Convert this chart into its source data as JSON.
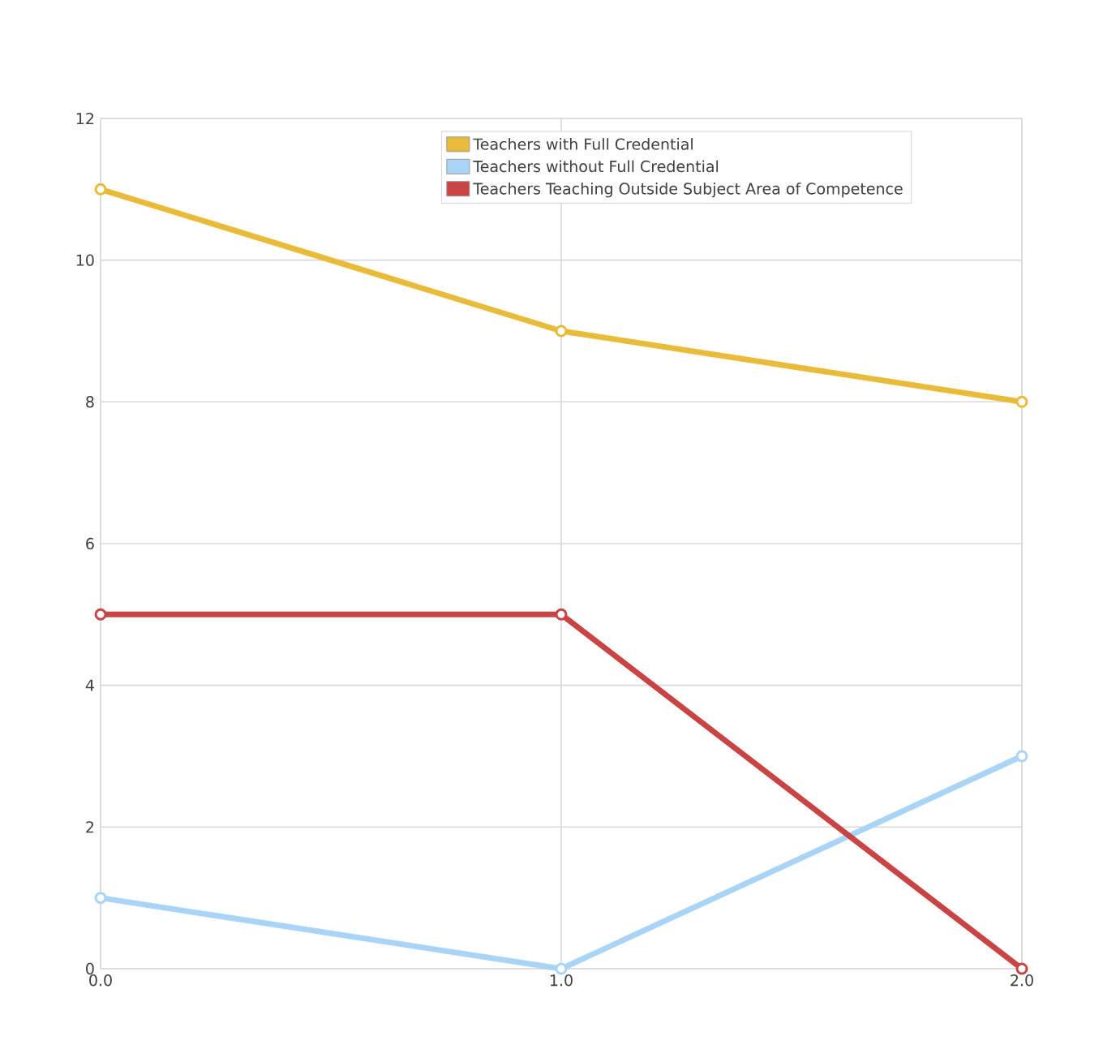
{
  "chart_data": {
    "type": "line",
    "x": [
      0,
      1,
      2
    ],
    "xlim": [
      0,
      2
    ],
    "xticks": [
      {
        "value": 0,
        "label": "0.0"
      },
      {
        "value": 1,
        "label": "1.0"
      },
      {
        "value": 2,
        "label": "2.0"
      }
    ],
    "ylim": [
      0,
      12
    ],
    "yticks": [
      0,
      2,
      4,
      6,
      8,
      10,
      12
    ],
    "series": [
      {
        "name": "Teachers with Full Credential",
        "color": "#e8bc3a",
        "values": [
          11,
          9,
          8
        ]
      },
      {
        "name": "Teachers without Full Credential",
        "color": "#aad4f5",
        "values": [
          1,
          0,
          3
        ]
      },
      {
        "name": "Teachers Teaching Outside Subject Area of Competence",
        "color": "#c94444",
        "values": [
          5,
          5,
          0
        ]
      }
    ],
    "grid": true,
    "legend": "top",
    "marker": "circle",
    "line_style": "solid"
  }
}
